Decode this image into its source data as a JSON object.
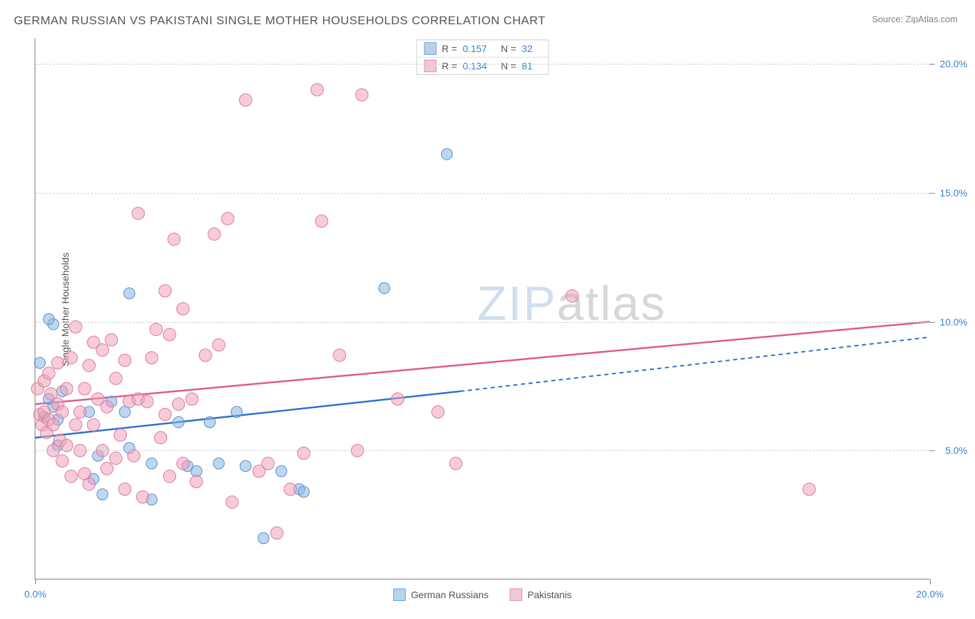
{
  "title": "GERMAN RUSSIAN VS PAKISTANI SINGLE MOTHER HOUSEHOLDS CORRELATION CHART",
  "source_label": "Source: ",
  "source_value": "ZipAtlas.com",
  "ylabel": "Single Mother Households",
  "watermark": {
    "part1": "ZIP",
    "part2": "atlas"
  },
  "chart": {
    "type": "scatter",
    "background_color": "#ffffff",
    "grid_color": "#d0d0d0",
    "axis_color": "#808080",
    "xlim": [
      0,
      20
    ],
    "ylim": [
      0,
      21
    ],
    "yticks": [
      5,
      10,
      15,
      20
    ],
    "ytick_labels": [
      "5.0%",
      "10.0%",
      "15.0%",
      "20.0%"
    ],
    "xticks": [
      0,
      20
    ],
    "xtick_labels": [
      "0.0%",
      "20.0%"
    ],
    "tick_label_color": "#3b7dd8",
    "tick_label_fontsize": 14,
    "series": [
      {
        "name": "German Russians",
        "marker_fill": "rgba(135,180,230,0.55)",
        "marker_stroke": "#5a8fc9",
        "swatch_fill": "#b8d1ec",
        "swatch_border": "#6ba3db",
        "line_color": "#2f6fd0",
        "R": "0.157",
        "N": "32",
        "trend": {
          "x1": 0,
          "y1": 5.5,
          "x2_solid": 9.5,
          "y2_solid": 7.3,
          "x2": 20,
          "y2": 9.4
        },
        "marker_radius": 8,
        "points": [
          [
            0.1,
            8.4
          ],
          [
            0.2,
            6.3
          ],
          [
            0.3,
            7.0
          ],
          [
            0.4,
            6.7
          ],
          [
            0.5,
            6.2
          ],
          [
            0.5,
            5.2
          ],
          [
            0.6,
            7.3
          ],
          [
            0.4,
            9.9
          ],
          [
            0.3,
            10.1
          ],
          [
            1.2,
            6.5
          ],
          [
            1.4,
            4.8
          ],
          [
            1.5,
            3.3
          ],
          [
            1.7,
            6.9
          ],
          [
            2.0,
            6.5
          ],
          [
            2.1,
            5.1
          ],
          [
            1.3,
            3.9
          ],
          [
            2.1,
            11.1
          ],
          [
            2.6,
            4.5
          ],
          [
            2.6,
            3.1
          ],
          [
            3.2,
            6.1
          ],
          [
            3.4,
            4.4
          ],
          [
            3.6,
            4.2
          ],
          [
            3.9,
            6.1
          ],
          [
            4.1,
            4.5
          ],
          [
            4.5,
            6.5
          ],
          [
            4.7,
            4.4
          ],
          [
            5.1,
            1.6
          ],
          [
            5.5,
            4.2
          ],
          [
            5.9,
            3.5
          ],
          [
            6.0,
            3.4
          ],
          [
            7.8,
            11.3
          ],
          [
            9.2,
            16.5
          ]
        ]
      },
      {
        "name": "Pakistanis",
        "marker_fill": "rgba(240,160,185,0.55)",
        "marker_stroke": "#d97a9a",
        "swatch_fill": "#f3c6d4",
        "swatch_border": "#e693ae",
        "line_color": "#e05a85",
        "R": "0.134",
        "N": "81",
        "trend": {
          "x1": 0,
          "y1": 6.8,
          "x2_solid": 20,
          "y2_solid": 10.0,
          "x2": 20,
          "y2": 10.0
        },
        "marker_radius": 9,
        "points": [
          [
            0.05,
            7.4
          ],
          [
            0.1,
            6.4
          ],
          [
            0.15,
            6.0
          ],
          [
            0.2,
            7.7
          ],
          [
            0.2,
            6.5
          ],
          [
            0.25,
            5.7
          ],
          [
            0.3,
            6.2
          ],
          [
            0.3,
            8.0
          ],
          [
            0.35,
            7.2
          ],
          [
            0.4,
            6.0
          ],
          [
            0.4,
            5.0
          ],
          [
            0.5,
            6.8
          ],
          [
            0.5,
            8.4
          ],
          [
            0.55,
            5.4
          ],
          [
            0.6,
            4.6
          ],
          [
            0.6,
            6.5
          ],
          [
            0.7,
            5.2
          ],
          [
            0.7,
            7.4
          ],
          [
            0.8,
            8.6
          ],
          [
            0.8,
            4.0
          ],
          [
            0.9,
            6.0
          ],
          [
            0.9,
            9.8
          ],
          [
            1.0,
            5.0
          ],
          [
            1.0,
            6.5
          ],
          [
            1.1,
            4.1
          ],
          [
            1.1,
            7.4
          ],
          [
            1.2,
            8.3
          ],
          [
            1.2,
            3.7
          ],
          [
            1.3,
            6.0
          ],
          [
            1.3,
            9.2
          ],
          [
            1.4,
            7.0
          ],
          [
            1.5,
            8.9
          ],
          [
            1.5,
            5.0
          ],
          [
            1.6,
            4.3
          ],
          [
            1.6,
            6.7
          ],
          [
            1.7,
            9.3
          ],
          [
            1.8,
            4.7
          ],
          [
            1.8,
            7.8
          ],
          [
            1.9,
            5.6
          ],
          [
            2.0,
            8.5
          ],
          [
            2.0,
            3.5
          ],
          [
            2.1,
            6.9
          ],
          [
            2.2,
            4.8
          ],
          [
            2.3,
            14.2
          ],
          [
            2.3,
            7.0
          ],
          [
            2.4,
            3.2
          ],
          [
            2.5,
            6.9
          ],
          [
            2.6,
            8.6
          ],
          [
            2.7,
            9.7
          ],
          [
            2.8,
            5.5
          ],
          [
            2.9,
            6.4
          ],
          [
            2.9,
            11.2
          ],
          [
            3.0,
            4.0
          ],
          [
            3.0,
            9.5
          ],
          [
            3.1,
            13.2
          ],
          [
            3.2,
            6.8
          ],
          [
            3.3,
            4.5
          ],
          [
            3.3,
            10.5
          ],
          [
            3.5,
            7.0
          ],
          [
            3.6,
            3.8
          ],
          [
            3.8,
            8.7
          ],
          [
            4.0,
            13.4
          ],
          [
            4.1,
            9.1
          ],
          [
            4.3,
            14.0
          ],
          [
            4.4,
            3.0
          ],
          [
            4.7,
            18.6
          ],
          [
            5.0,
            4.2
          ],
          [
            5.2,
            4.5
          ],
          [
            5.4,
            1.8
          ],
          [
            5.7,
            3.5
          ],
          [
            6.0,
            4.9
          ],
          [
            6.3,
            19.0
          ],
          [
            6.4,
            13.9
          ],
          [
            6.8,
            8.7
          ],
          [
            7.2,
            5.0
          ],
          [
            7.3,
            18.8
          ],
          [
            8.1,
            7.0
          ],
          [
            9.0,
            6.5
          ],
          [
            9.4,
            4.5
          ],
          [
            12.0,
            11.0
          ],
          [
            17.3,
            3.5
          ]
        ]
      }
    ],
    "legend_bottom": [
      {
        "label": "German Russians",
        "swatch_fill": "#b8d1ec",
        "swatch_border": "#6ba3db"
      },
      {
        "label": "Pakistanis",
        "swatch_fill": "#f3c6d4",
        "swatch_border": "#e693ae"
      }
    ]
  }
}
